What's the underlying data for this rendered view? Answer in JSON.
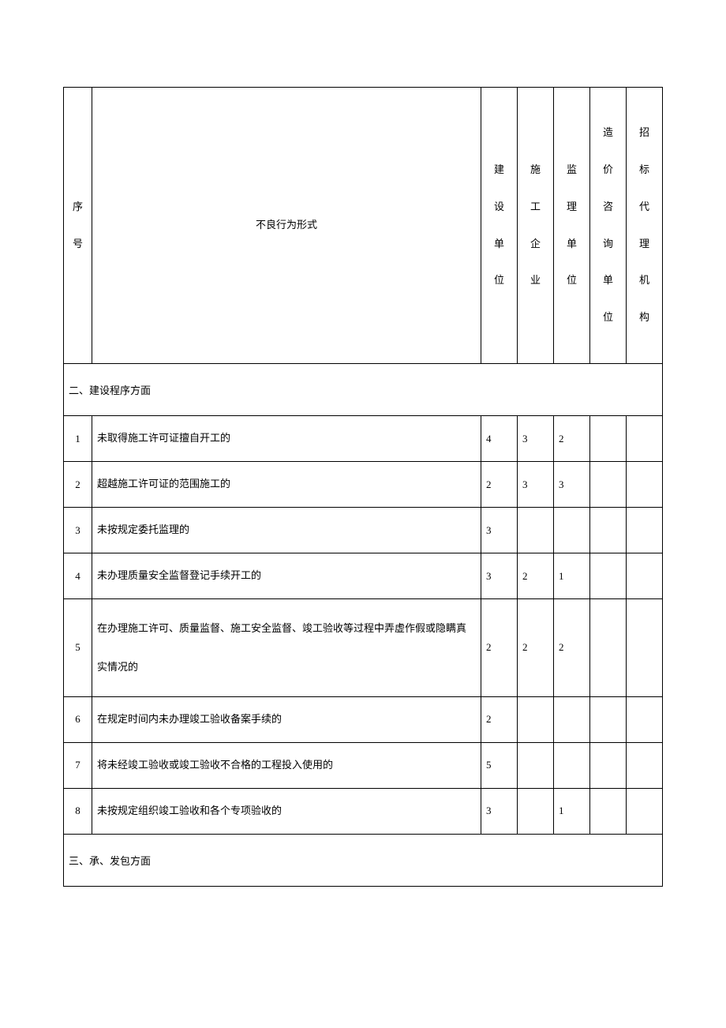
{
  "headers": {
    "seq": "序号",
    "behavior": "不良行为形式",
    "col1": "建设单位",
    "col2": "施工企业",
    "col3": "监理单位",
    "col4": "造价咨询单位",
    "col5": "招标代理机构"
  },
  "sections": [
    {
      "title": "二、建设程序方面",
      "rows": [
        {
          "seq": "1",
          "behavior": "未取得施工许可证擅自开工的",
          "v1": "4",
          "v2": "3",
          "v3": "2",
          "v4": "",
          "v5": ""
        },
        {
          "seq": "2",
          "behavior": "超越施工许可证的范围施工的",
          "v1": "2",
          "v2": "3",
          "v3": "3",
          "v4": "",
          "v5": ""
        },
        {
          "seq": "3",
          "behavior": "未按规定委托监理的",
          "v1": "3",
          "v2": "",
          "v3": "",
          "v4": "",
          "v5": ""
        },
        {
          "seq": "4",
          "behavior": "未办理质量安全监督登记手续开工的",
          "v1": "3",
          "v2": "2",
          "v3": "1",
          "v4": "",
          "v5": ""
        },
        {
          "seq": "5",
          "behavior": "在办理施工许可、质量监督、施工安全监督、竣工验收等过程中弄虚作假或隐瞒真实情况的",
          "v1": "2",
          "v2": "2",
          "v3": "2",
          "v4": "",
          "v5": "",
          "multiline": true
        },
        {
          "seq": "6",
          "behavior": "在规定时间内未办理竣工验收备案手续的",
          "v1": "2",
          "v2": "",
          "v3": "",
          "v4": "",
          "v5": ""
        },
        {
          "seq": "7",
          "behavior": "将未经竣工验收或竣工验收不合格的工程投入使用的",
          "v1": "5",
          "v2": "",
          "v3": "",
          "v4": "",
          "v5": ""
        },
        {
          "seq": "8",
          "behavior": "未按规定组织竣工验收和各个专项验收的",
          "v1": "3",
          "v2": "",
          "v3": "1",
          "v4": "",
          "v5": ""
        }
      ]
    },
    {
      "title": "三、承、发包方面",
      "rows": []
    }
  ],
  "style": {
    "background_color": "#ffffff",
    "border_color": "#000000",
    "text_color": "#000000",
    "font_family": "SimSun",
    "base_font_size": 13,
    "header_row_height": 350,
    "data_row_height": 58,
    "section_row_height": 66,
    "col_seq_width": 36,
    "col_score_width": 46
  }
}
